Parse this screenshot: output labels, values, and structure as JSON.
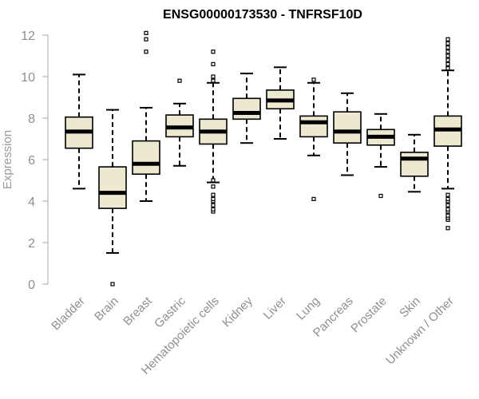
{
  "chart_data": {
    "type": "box",
    "title": "ENSG00000173530 - TNFRSF10D",
    "xlabel": "",
    "ylabel": "Expression",
    "ylim": [
      0,
      12
    ],
    "yticks": [
      0,
      2,
      4,
      6,
      8,
      10,
      12
    ],
    "grid": false,
    "legend": "none",
    "box_fill": "#ede8d0",
    "categories": [
      "Bladder",
      "Brain",
      "Breast",
      "Gastric",
      "Hematopoietic cells",
      "Kidney",
      "Liver",
      "Lung",
      "Pancreas",
      "Prostate",
      "Skin",
      "Unknown / Other"
    ],
    "boxes": [
      {
        "whisker_low": 4.6,
        "q1": 6.55,
        "median": 7.35,
        "q3": 8.05,
        "whisker_high": 10.1,
        "outliers": []
      },
      {
        "whisker_low": 1.5,
        "q1": 3.65,
        "median": 4.4,
        "q3": 5.65,
        "whisker_high": 8.4,
        "outliers": [
          0.0
        ]
      },
      {
        "whisker_low": 4.0,
        "q1": 5.3,
        "median": 5.8,
        "q3": 6.9,
        "whisker_high": 8.5,
        "outliers": [
          11.2,
          11.8,
          12.1
        ]
      },
      {
        "whisker_low": 5.7,
        "q1": 7.1,
        "median": 7.55,
        "q3": 8.15,
        "whisker_high": 8.7,
        "outliers": [
          9.8
        ]
      },
      {
        "whisker_low": 4.9,
        "q1": 6.75,
        "median": 7.35,
        "q3": 7.95,
        "whisker_high": 9.7,
        "outliers": [
          3.5,
          3.6,
          3.8,
          4.0,
          4.1,
          4.3,
          4.7,
          5.0,
          9.8,
          10.0,
          10.6,
          11.2
        ]
      },
      {
        "whisker_low": 6.8,
        "q1": 7.95,
        "median": 8.25,
        "q3": 8.95,
        "whisker_high": 10.15,
        "outliers": []
      },
      {
        "whisker_low": 7.0,
        "q1": 8.45,
        "median": 8.85,
        "q3": 9.35,
        "whisker_high": 10.45,
        "outliers": []
      },
      {
        "whisker_low": 6.2,
        "q1": 7.1,
        "median": 7.8,
        "q3": 8.1,
        "whisker_high": 9.7,
        "outliers": [
          4.1,
          9.85
        ]
      },
      {
        "whisker_low": 5.25,
        "q1": 6.8,
        "median": 7.35,
        "q3": 8.3,
        "whisker_high": 9.2,
        "outliers": []
      },
      {
        "whisker_low": 5.65,
        "q1": 6.7,
        "median": 7.1,
        "q3": 7.45,
        "whisker_high": 8.2,
        "outliers": [
          4.25
        ]
      },
      {
        "whisker_low": 4.45,
        "q1": 5.2,
        "median": 6.05,
        "q3": 6.35,
        "whisker_high": 7.2,
        "outliers": []
      },
      {
        "whisker_low": 4.6,
        "q1": 6.65,
        "median": 7.45,
        "q3": 8.1,
        "whisker_high": 10.3,
        "outliers": [
          2.7,
          3.1,
          3.2,
          3.3,
          3.5,
          3.6,
          3.8,
          4.0,
          4.1,
          4.3,
          10.4,
          10.6,
          10.8,
          11.0,
          11.2,
          11.4,
          11.6,
          11.8
        ]
      }
    ]
  }
}
